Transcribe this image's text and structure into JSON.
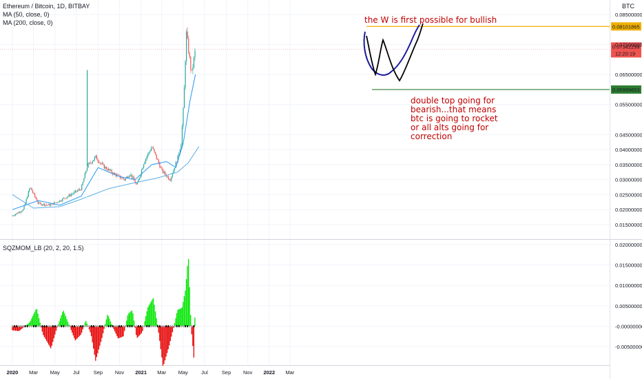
{
  "header": {
    "symbol": "Ethereum / Bitcoin, 1D, BITBAY",
    "ma50": "MA (50, close, 0)",
    "ma200": "MA (200, close, 0)",
    "currency": "BTC"
  },
  "annotations": {
    "w_note": "the W is first possible for bullish",
    "dt_note": [
      "double top going for",
      "bearish...that means",
      "btc is going to rocket",
      "or all alts going for",
      "correction"
    ]
  },
  "colors": {
    "up": "#26a69a",
    "down": "#ef5350",
    "ma50": "#2196f3",
    "ma200": "#5dade2",
    "resistance": "#f0b000",
    "support": "#2e7d32",
    "price_tag": "#ef5350",
    "hist_up": "#00e600",
    "hist_down": "#e60000",
    "annotation": "#c00000",
    "w_drawing": "#1a1aa0",
    "second_drawing": "#000000"
  },
  "chart_data": [
    {
      "type": "candlestick",
      "x_labels": [
        "2020",
        "Mar",
        "May",
        "Jul",
        "Sep",
        "Nov",
        "2021",
        "Mar",
        "May",
        "Jul",
        "Sep",
        "Nov",
        "2022",
        "Mar"
      ],
      "y_ticks": [
        "0.08500000",
        "0.07500000",
        "0.06500000",
        "0.05500000",
        "0.04500000",
        "0.04000000",
        "0.03500000",
        "0.03000000",
        "0.02500000",
        "0.02000000",
        "0.01500000"
      ],
      "ylim": [
        0.013,
        0.087
      ],
      "price_levels": {
        "resistance": "0.08101865",
        "current": "0.07342299",
        "countdown": "12:20:19",
        "support": "0.05999653"
      },
      "close_series": [
        [
          "2020-01-01",
          0.018
        ],
        [
          "2020-02-01",
          0.02
        ],
        [
          "2020-02-20",
          0.0275
        ],
        [
          "2020-03-15",
          0.022
        ],
        [
          "2020-04-15",
          0.0215
        ],
        [
          "2020-05-15",
          0.023
        ],
        [
          "2020-06-15",
          0.025
        ],
        [
          "2020-07-15",
          0.027
        ],
        [
          "2020-08-01",
          0.0345
        ],
        [
          "2020-08-25",
          0.0375
        ],
        [
          "2020-09-15",
          0.0345
        ],
        [
          "2020-10-15",
          0.032
        ],
        [
          "2020-11-15",
          0.03
        ],
        [
          "2020-12-01",
          0.032
        ],
        [
          "2020-12-20",
          0.028
        ],
        [
          "2021-01-10",
          0.036
        ],
        [
          "2021-02-01",
          0.041
        ],
        [
          "2021-03-01",
          0.033
        ],
        [
          "2021-03-25",
          0.03
        ],
        [
          "2021-04-15",
          0.037
        ],
        [
          "2021-04-25",
          0.042
        ],
        [
          "2021-05-03",
          0.056
        ],
        [
          "2021-05-10",
          0.079
        ],
        [
          "2021-05-25",
          0.065
        ],
        [
          "2021-06-05",
          0.0735
        ]
      ],
      "spikes": [
        {
          "date": "2020-08-01",
          "high": 0.0665
        }
      ],
      "ma50": [
        [
          "2020-01-01",
          0.02
        ],
        [
          "2020-03-15",
          0.023
        ],
        [
          "2020-05-15",
          0.0215
        ],
        [
          "2020-07-15",
          0.0245
        ],
        [
          "2020-09-01",
          0.034
        ],
        [
          "2020-11-01",
          0.031
        ],
        [
          "2020-12-15",
          0.03
        ],
        [
          "2021-02-01",
          0.035
        ],
        [
          "2021-03-15",
          0.036
        ],
        [
          "2021-04-10",
          0.034
        ],
        [
          "2021-05-01",
          0.042
        ],
        [
          "2021-05-20",
          0.056
        ],
        [
          "2021-06-05",
          0.065
        ]
      ],
      "ma200": [
        [
          "2020-01-01",
          0.025
        ],
        [
          "2020-03-01",
          0.0205
        ],
        [
          "2020-05-15",
          0.021
        ],
        [
          "2020-07-15",
          0.0235
        ],
        [
          "2020-10-01",
          0.027
        ],
        [
          "2020-12-15",
          0.029
        ],
        [
          "2021-02-15",
          0.0305
        ],
        [
          "2021-04-15",
          0.0325
        ],
        [
          "2021-05-15",
          0.0355
        ],
        [
          "2021-06-15",
          0.041
        ]
      ]
    },
    {
      "type": "bar",
      "title": "SQZMOM_LB (20, 2, 20, 1.5)",
      "y_ticks": [
        "0.02000000",
        "0.01500000",
        "0.01000000",
        "0.00500000",
        "-0.00000000",
        "-0.00500000"
      ],
      "ylim": [
        -0.0068,
        0.021
      ],
      "series": [
        [
          "2020-01-01",
          -0.001
        ],
        [
          "2020-01-20",
          -0.0012
        ],
        [
          "2020-02-20",
          0.001
        ],
        [
          "2020-03-10",
          0.0045
        ],
        [
          "2020-03-28",
          -0.002
        ],
        [
          "2020-04-20",
          -0.0055
        ],
        [
          "2020-05-05",
          -0.001
        ],
        [
          "2020-05-25",
          0.004
        ],
        [
          "2020-06-12",
          0.0
        ],
        [
          "2020-06-28",
          -0.0035
        ],
        [
          "2020-07-15",
          -0.002
        ],
        [
          "2020-07-28",
          0.0015
        ],
        [
          "2020-08-12",
          -0.002
        ],
        [
          "2020-08-25",
          -0.0085
        ],
        [
          "2020-09-12",
          -0.003
        ],
        [
          "2020-09-28",
          0.003
        ],
        [
          "2020-10-12",
          0.0
        ],
        [
          "2020-10-28",
          -0.003
        ],
        [
          "2020-11-12",
          -0.0025
        ],
        [
          "2020-11-25",
          0.003
        ],
        [
          "2020-12-08",
          0.004
        ],
        [
          "2020-12-20",
          -0.003
        ],
        [
          "2021-01-05",
          -0.0015
        ],
        [
          "2021-01-20",
          0.0045
        ],
        [
          "2021-02-05",
          0.007
        ],
        [
          "2021-02-18",
          0.0
        ],
        [
          "2021-03-05",
          -0.01
        ],
        [
          "2021-03-22",
          -0.005
        ],
        [
          "2021-04-05",
          0.0
        ],
        [
          "2021-04-15",
          0.004
        ],
        [
          "2021-04-28",
          0.0045
        ],
        [
          "2021-05-08",
          0.009
        ],
        [
          "2021-05-16",
          0.0175
        ],
        [
          "2021-05-24",
          -0.0005
        ],
        [
          "2021-06-01",
          -0.008
        ],
        [
          "2021-06-05",
          0.007
        ]
      ]
    }
  ]
}
